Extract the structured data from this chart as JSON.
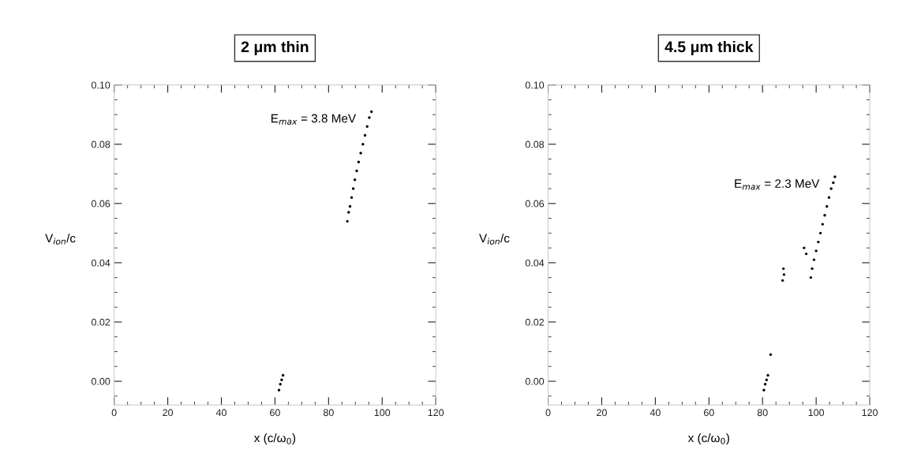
{
  "chart_data": [
    {
      "type": "scatter",
      "title": "2 μm thin",
      "xlabel": "x (c/ω$_{0}$)",
      "ylabel": "V$_{ion}$/c",
      "annotations": [
        "E$_{max}$ = 3.8 MeV"
      ],
      "series": [
        {
          "color": "#000000",
          "x": [
            87,
            87.5,
            88,
            88.6,
            89.2,
            89.8,
            90.5,
            91.2,
            92,
            92.8,
            93.6,
            94.4,
            95.2,
            96
          ],
          "values": [
            0.054,
            0.057,
            0.059,
            0.062,
            0.065,
            0.068,
            0.071,
            0.074,
            0.077,
            0.08,
            0.083,
            0.086,
            0.089,
            0.091
          ]
        },
        {
          "color": "#000000",
          "x": [
            61.5,
            62,
            62.5,
            63
          ],
          "values": [
            -0.003,
            -0.001,
            0.0005,
            0.002
          ]
        }
      ],
      "xlim": [
        0,
        120
      ],
      "ylim": [
        -0.008,
        0.1
      ],
      "xticks": [
        0,
        20,
        40,
        60,
        80,
        100,
        120
      ],
      "yticks": [
        {
          "value": 0,
          "label": "0.00"
        },
        {
          "value": 0.02,
          "label": "0.02"
        },
        {
          "value": 0.04,
          "label": "0.04"
        },
        {
          "value": 0.06,
          "label": "0.06"
        },
        {
          "value": 0.08,
          "label": "0.08"
        },
        {
          "value": 0.1,
          "label": "0.10"
        }
      ]
    },
    {
      "type": "scatter",
      "title": "4.5 μm thick",
      "xlabel": "x (c/ω$_{0}$)",
      "ylabel": "V$_{ion}$/c",
      "annotations": [
        "E$_{max}$ = 2.3 MeV"
      ],
      "series": [
        {
          "color": "#000000",
          "x": [
            98,
            98.5,
            99.2,
            100,
            100.8,
            101.6,
            102.4,
            103.2,
            104,
            104.8,
            105.6,
            106.4,
            107
          ],
          "values": [
            0.035,
            0.038,
            0.041,
            0.044,
            0.047,
            0.05,
            0.053,
            0.056,
            0.059,
            0.062,
            0.065,
            0.067,
            0.069
          ]
        },
        {
          "color": "#000000",
          "x": [
            95.5,
            96.3
          ],
          "values": [
            0.045,
            0.043
          ]
        },
        {
          "color": "#000000",
          "x": [
            87.5,
            88,
            87.8
          ],
          "values": [
            0.034,
            0.036,
            0.038
          ]
        },
        {
          "color": "#000000",
          "x": [
            83
          ],
          "values": [
            0.009
          ]
        },
        {
          "color": "#000000",
          "x": [
            80.5,
            81,
            81.5,
            82
          ],
          "values": [
            -0.003,
            -0.001,
            0.0005,
            0.002
          ]
        }
      ],
      "xlim": [
        0,
        120
      ],
      "ylim": [
        -0.008,
        0.1
      ],
      "xticks": [
        0,
        20,
        40,
        60,
        80,
        100,
        120
      ],
      "yticks": [
        {
          "value": 0,
          "label": "0.00"
        },
        {
          "value": 0.02,
          "label": "0.02"
        },
        {
          "value": 0.04,
          "label": "0.04"
        },
        {
          "value": 0.06,
          "label": "0.06"
        },
        {
          "value": 0.08,
          "label": "0.08"
        },
        {
          "value": 0.1,
          "label": "0.10"
        }
      ]
    }
  ]
}
